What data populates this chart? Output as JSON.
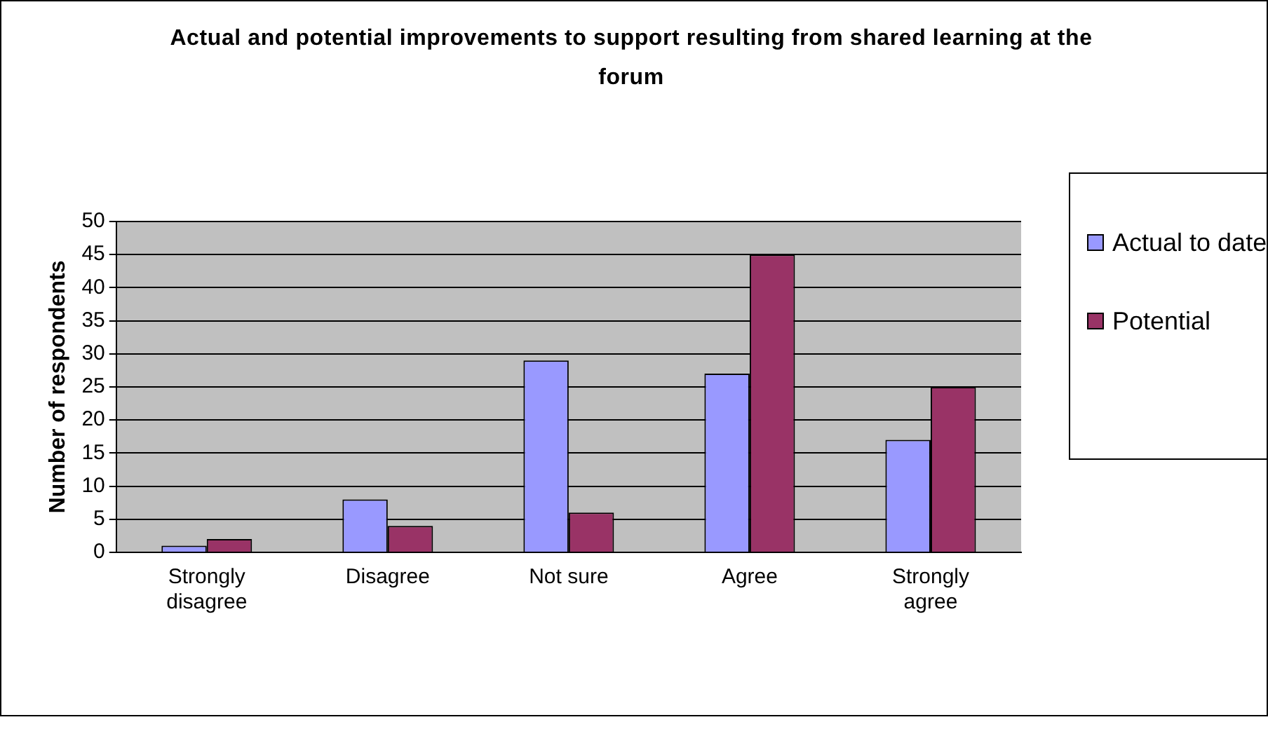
{
  "chart_data": {
    "type": "bar",
    "title": "Actual and potential improvements to support resulting from shared learning at the forum",
    "ylabel": "Number of respondents",
    "categories": [
      "Strongly disagree",
      "Disagree",
      "Not sure",
      "Agree",
      "Strongly agree"
    ],
    "series": [
      {
        "name": "Actual to date",
        "color": "#9999ff",
        "values": [
          1,
          8,
          29,
          27,
          17
        ]
      },
      {
        "name": "Potential",
        "color": "#993366",
        "values": [
          2,
          4,
          6,
          45,
          25
        ]
      }
    ],
    "ylim": [
      0,
      50
    ],
    "yticks": [
      0,
      5,
      10,
      15,
      20,
      25,
      30,
      35,
      40,
      45,
      50
    ],
    "grid": "y",
    "legend": "right"
  }
}
